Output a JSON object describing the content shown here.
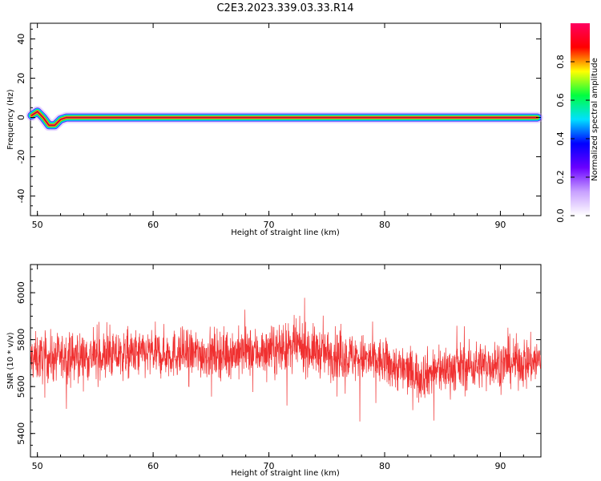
{
  "figure": {
    "title": "C2E3.2023.339.03.33.R14"
  },
  "chart_data": [
    {
      "type": "heatmap",
      "title": "C2E3.2023.339.03.33.R14",
      "xlabel": "Height of straight line (km)",
      "ylabel": "Frequency (Hz)",
      "xlim": [
        49.4,
        93.5
      ],
      "ylim": [
        -50,
        48
      ],
      "xticks": [
        50,
        60,
        70,
        80,
        90
      ],
      "yticks": [
        -40,
        -20,
        0,
        20,
        40
      ],
      "track": {
        "x": [
          49.5,
          50.0,
          50.5,
          51.0,
          51.5,
          52.0,
          52.5,
          93.2
        ],
        "y": [
          1,
          3,
          0,
          -4,
          -4,
          -1,
          0,
          0
        ]
      },
      "colorbar": {
        "label": "Normalized spectral amplitude",
        "ticks": [
          0.0,
          0.2,
          0.4,
          0.6,
          0.8
        ],
        "range": [
          0,
          1
        ],
        "colormap": [
          "#ffffff",
          "#c8a0ff",
          "#6a00ff",
          "#0000ff",
          "#00e0ff",
          "#00ff40",
          "#ffff00",
          "#ff0000",
          "#ff0060"
        ]
      }
    },
    {
      "type": "line",
      "xlabel": "Height of straight line (km)",
      "ylabel": "SNR (10 * v/v)",
      "xlim": [
        49.4,
        93.5
      ],
      "ylim": [
        5300,
        6120
      ],
      "xticks": [
        50,
        60,
        70,
        80,
        90
      ],
      "yticks": [
        5400,
        5600,
        5800,
        6000
      ],
      "color": "#f03030",
      "profile_x": [
        49.4,
        55,
        60,
        65,
        70,
        72.5,
        75,
        78,
        80,
        83,
        86,
        90,
        93.5
      ],
      "profile_mean": [
        5720,
        5730,
        5740,
        5740,
        5750,
        5770,
        5740,
        5720,
        5700,
        5650,
        5680,
        5700,
        5710
      ],
      "spread": 130,
      "samples": 2200
    }
  ]
}
